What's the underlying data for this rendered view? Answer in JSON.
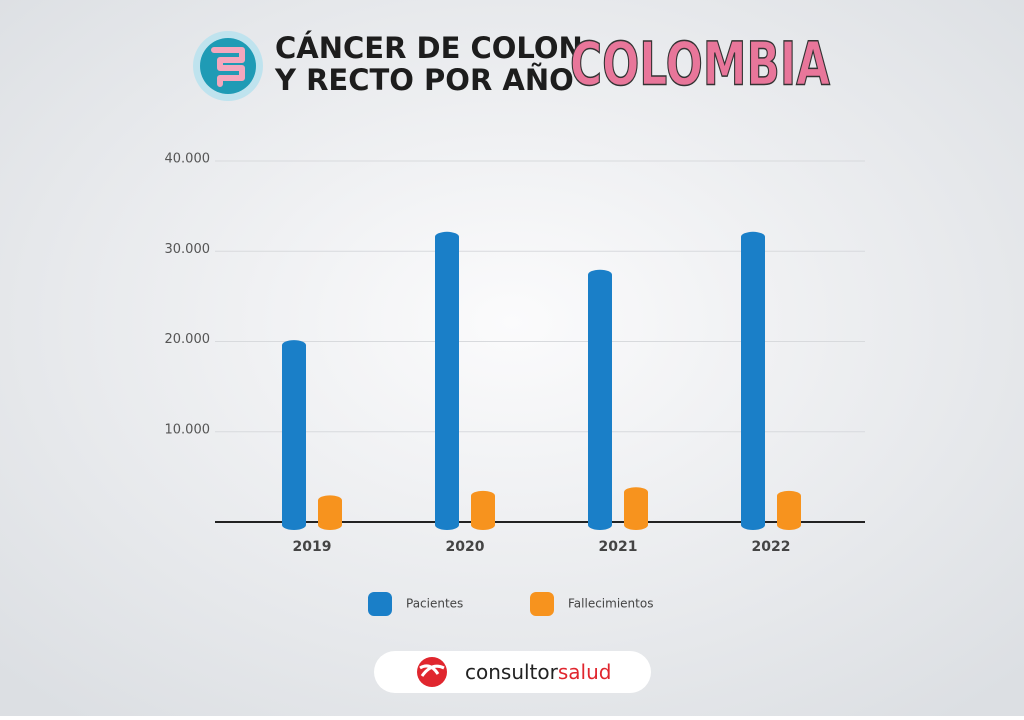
{
  "chart_data": {
    "type": "bar",
    "title_lines": [
      "CÁNCER DE COLON",
      "Y RECTO POR AÑO"
    ],
    "title_highlight": "COLOMBIA",
    "categories": [
      "2019",
      "2020",
      "2021",
      "2022"
    ],
    "series": [
      {
        "name": "Pacientes",
        "color": "#1a7fc8",
        "values": [
          19600,
          31600,
          27400,
          31600
        ]
      },
      {
        "name": "Fallecimientos",
        "color": "#f7931e",
        "values": [
          2400,
          2900,
          3300,
          2900
        ]
      }
    ],
    "ylim": [
      0,
      40000
    ],
    "yticks": [
      {
        "value": 10000,
        "label": "10.000"
      },
      {
        "value": 20000,
        "label": "20.000"
      },
      {
        "value": 30000,
        "label": "30.000"
      },
      {
        "value": 40000,
        "label": "40.000"
      }
    ],
    "grid": true,
    "legend": "bottom",
    "brand": [
      "consultor",
      "salud"
    ]
  }
}
